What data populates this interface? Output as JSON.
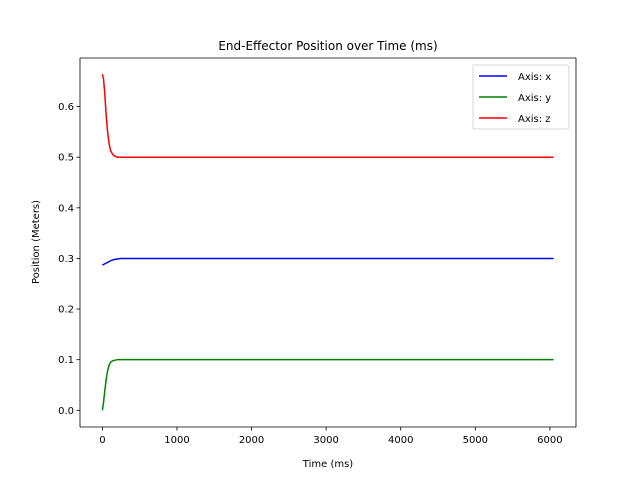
{
  "chart_data": {
    "type": "line",
    "title": "End-Effector Position over Time (ms)",
    "xlabel": "Time (ms)",
    "ylabel": "Position (Meters)",
    "xlim": [
      -300,
      6350
    ],
    "ylim": [
      -0.033,
      0.696
    ],
    "x_ticks": [
      0,
      1000,
      2000,
      3000,
      4000,
      5000,
      6000
    ],
    "y_ticks": [
      0.0,
      0.1,
      0.2,
      0.3,
      0.4,
      0.5,
      0.6
    ],
    "x_tick_labels": [
      "0",
      "1000",
      "2000",
      "3000",
      "4000",
      "5000",
      "6000"
    ],
    "y_tick_labels": [
      "0.0",
      "0.1",
      "0.2",
      "0.3",
      "0.4",
      "0.5",
      "0.6"
    ],
    "grid": false,
    "legend_position": "top-right",
    "series": [
      {
        "name": "Axis: x",
        "color": "#0000ff",
        "x": [
          0,
          40,
          80,
          120,
          160,
          200,
          250,
          300,
          400,
          600,
          1000,
          2000,
          3000,
          4000,
          5000,
          6050
        ],
        "y": [
          0.287,
          0.29,
          0.293,
          0.296,
          0.298,
          0.299,
          0.3,
          0.3,
          0.3,
          0.3,
          0.3,
          0.3,
          0.3,
          0.3,
          0.3,
          0.3
        ]
      },
      {
        "name": "Axis: y",
        "color": "#008000",
        "x": [
          0,
          15,
          30,
          50,
          70,
          90,
          110,
          140,
          170,
          200,
          250,
          300,
          400,
          600,
          1000,
          2000,
          3000,
          4000,
          5000,
          6050
        ],
        "y": [
          0.0,
          0.015,
          0.035,
          0.06,
          0.078,
          0.089,
          0.095,
          0.098,
          0.099,
          0.1,
          0.1,
          0.1,
          0.1,
          0.1,
          0.1,
          0.1,
          0.1,
          0.1,
          0.1,
          0.1
        ]
      },
      {
        "name": "Axis: z",
        "color": "#ff0000",
        "x": [
          0,
          15,
          30,
          50,
          70,
          90,
          110,
          140,
          170,
          200,
          250,
          300,
          400,
          600,
          1000,
          2000,
          3000,
          4000,
          5000,
          6050
        ],
        "y": [
          0.664,
          0.655,
          0.63,
          0.585,
          0.55,
          0.527,
          0.513,
          0.505,
          0.502,
          0.5,
          0.5,
          0.5,
          0.5,
          0.5,
          0.5,
          0.5,
          0.5,
          0.5,
          0.5,
          0.5
        ]
      }
    ]
  }
}
